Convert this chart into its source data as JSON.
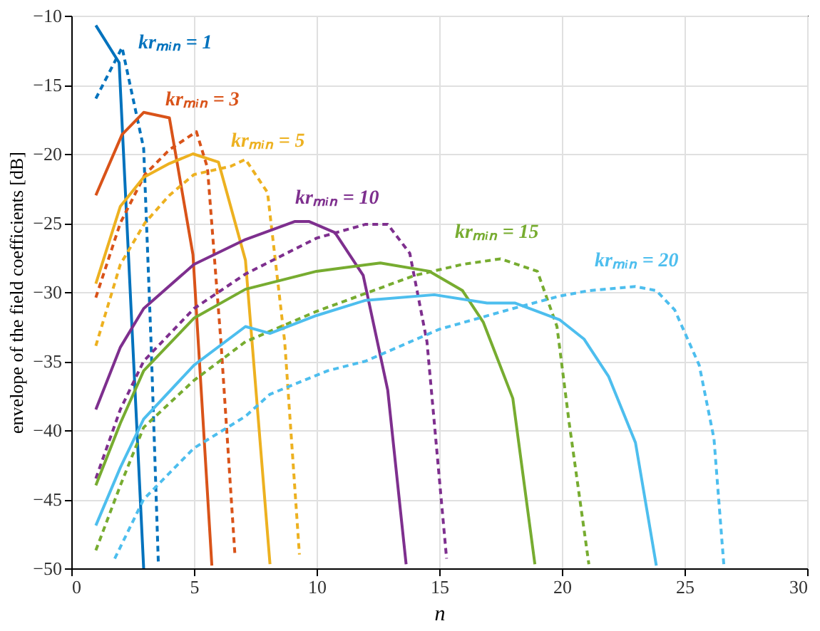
{
  "chart_data": {
    "type": "line",
    "xlabel": "n",
    "ylabel": "envelope of the field coefficients [dB]",
    "xlim": [
      0,
      30
    ],
    "ylim": [
      -50,
      -10
    ],
    "xticks": [
      0,
      5,
      10,
      15,
      20,
      25,
      30
    ],
    "yticks": [
      -50,
      -45,
      -40,
      -35,
      -30,
      -25,
      -20,
      -15,
      -10
    ],
    "grid": true,
    "marker": "none",
    "series": [
      {
        "color": "#0072bd",
        "line_style": "solid",
        "x": [
          1,
          1.95,
          2.95
        ],
        "values": [
          -10.7,
          -13.4,
          -50
        ]
      },
      {
        "color": "#0072bd",
        "line_style": "dashed",
        "x": [
          1,
          2.07,
          2.95,
          3.25,
          3.55
        ],
        "values": [
          -16,
          -12.3,
          -19.6,
          -33.6,
          -49.7
        ]
      },
      {
        "color": "#d95319",
        "line_style": "solid",
        "x": [
          1,
          2.07,
          2.95,
          4,
          4.96,
          5.73
        ],
        "values": [
          -23,
          -18.6,
          -17,
          -17.4,
          -27.3,
          -49.8
        ]
      },
      {
        "color": "#d95319",
        "line_style": "dashed",
        "x": [
          1,
          2,
          3,
          4,
          5.1,
          5.55,
          6.1,
          6.67
        ],
        "values": [
          -30.4,
          -25,
          -21.5,
          -19.7,
          -18.4,
          -21,
          -33.6,
          -49
        ]
      },
      {
        "color": "#edb120",
        "line_style": "solid",
        "x": [
          1,
          2,
          2.95,
          4,
          4.96,
          6,
          7.1,
          8.1
        ],
        "values": [
          -29.4,
          -23.8,
          -21.7,
          -20.7,
          -20,
          -20.6,
          -27.7,
          -49.7
        ]
      },
      {
        "color": "#edb120",
        "line_style": "dashed",
        "x": [
          1,
          2,
          3,
          4,
          5,
          6.5,
          7.1,
          8,
          8.7,
          9.3
        ],
        "values": [
          -33.9,
          -28,
          -25,
          -23,
          -21.5,
          -20.9,
          -20.4,
          -22.8,
          -33.6,
          -49
        ]
      },
      {
        "color": "#7e2f8e",
        "line_style": "solid",
        "x": [
          1,
          2,
          2.95,
          5,
          7.1,
          9.1,
          9.7,
          10.75,
          11.9,
          12.9,
          13.65
        ],
        "values": [
          -38.5,
          -34,
          -31.2,
          -28,
          -26.2,
          -24.9,
          -24.9,
          -25.7,
          -28.8,
          -37.1,
          -49.7
        ]
      },
      {
        "color": "#7e2f8e",
        "line_style": "dashed",
        "x": [
          1,
          2,
          2.95,
          5,
          7.1,
          8.1,
          10,
          12,
          12.9,
          13.8,
          14.5,
          15.3
        ],
        "values": [
          -43.5,
          -38.5,
          -35,
          -31.2,
          -28.7,
          -27.8,
          -26.1,
          -25.1,
          -25.1,
          -27.2,
          -33.6,
          -49.3
        ]
      },
      {
        "color": "#77ac30",
        "line_style": "solid",
        "x": [
          1,
          2,
          2.95,
          5,
          7.1,
          10,
          12.6,
          14.6,
          15.95,
          16.8,
          18,
          18.9
        ],
        "values": [
          -44,
          -39.5,
          -35.7,
          -31.9,
          -29.8,
          -28.5,
          -27.9,
          -28.5,
          -29.9,
          -32.2,
          -37.7,
          -49.7
        ]
      },
      {
        "color": "#77ac30",
        "line_style": "dashed",
        "x": [
          1,
          2,
          2.95,
          5,
          7.1,
          10,
          12,
          14,
          15.95,
          17.5,
          19,
          19.8,
          20.3,
          21.1
        ],
        "values": [
          -48.7,
          -44,
          -39.8,
          -36.4,
          -33.6,
          -31.4,
          -30.1,
          -28.8,
          -28,
          -27.6,
          -28.5,
          -32.5,
          -39.5,
          -49.7
        ]
      },
      {
        "color": "#4dbeee",
        "line_style": "solid",
        "x": [
          1,
          2,
          2.95,
          5,
          7.1,
          8.1,
          10,
          12,
          14.8,
          16.95,
          18.1,
          19.9,
          20.9,
          21.9,
          23,
          23.85
        ],
        "values": [
          -46.9,
          -42.7,
          -39.2,
          -35.3,
          -32.5,
          -33,
          -31.7,
          -30.6,
          -30.2,
          -30.8,
          -30.8,
          -32,
          -33.4,
          -36.1,
          -40.9,
          -49.8
        ]
      },
      {
        "color": "#4dbeee",
        "line_style": "dashed",
        "x": [
          1.77,
          2.95,
          5,
          7.1,
          8.1,
          10.45,
          12,
          15,
          18,
          19.9,
          21.1,
          23,
          23.85,
          24.6,
          25.6,
          26.2,
          26.6
        ],
        "values": [
          -49.3,
          -45,
          -41.3,
          -39,
          -37.4,
          -35.7,
          -35,
          -32.7,
          -31.2,
          -30.3,
          -29.9,
          -29.6,
          -29.9,
          -31.3,
          -35.3,
          -40.6,
          -49.7
        ]
      }
    ],
    "annotations": [
      "krₘᵢₙ = 1",
      "krₘᵢₙ = 3",
      "krₘᵢₙ = 5",
      "krₘᵢₙ = 10",
      "krₘᵢₙ = 15",
      "krₘᵢₙ = 20"
    ]
  }
}
